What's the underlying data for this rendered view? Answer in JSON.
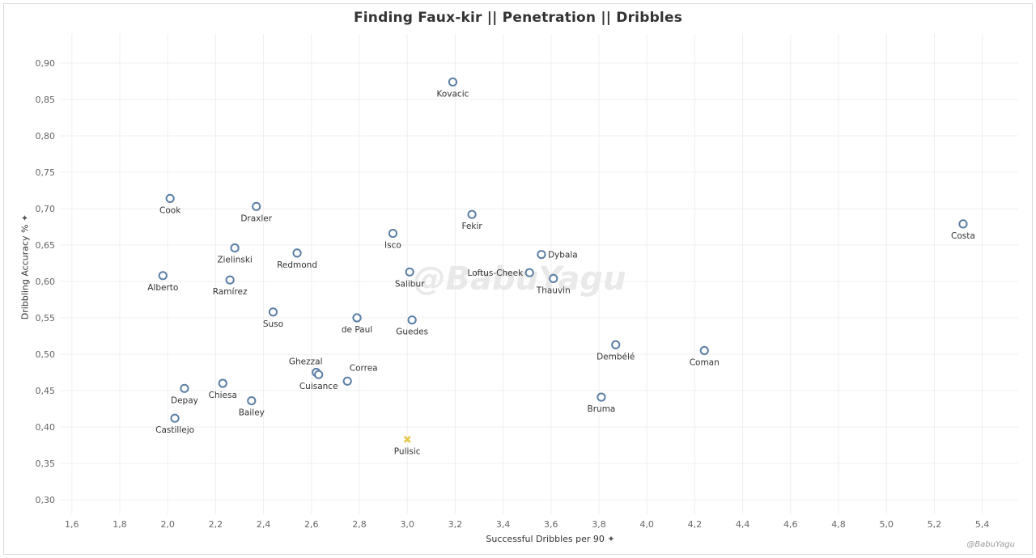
{
  "title": "Finding Faux-kir  ||  Penetration  ||  Dribbles",
  "credit": "@BabuYagu",
  "watermark": "@BabuYagu",
  "chart_data": {
    "type": "scatter",
    "title": "Finding Faux-kir  ||  Penetration  ||  Dribbles",
    "xlabel": "Successful Dribbles per 90",
    "ylabel": "Dribbling Accuracy %",
    "xlim": [
      1.55,
      5.55
    ],
    "ylim": [
      0.28,
      0.94
    ],
    "xticks": [
      "1,6",
      "1,8",
      "2,0",
      "2,2",
      "2,4",
      "2,6",
      "2,8",
      "3,0",
      "3,2",
      "3,4",
      "3,6",
      "3,8",
      "4,0",
      "4,2",
      "4,4",
      "4,6",
      "4,8",
      "5,0",
      "5,2",
      "5,4"
    ],
    "yticks": [
      "0,30",
      "0,35",
      "0,40",
      "0,45",
      "0,50",
      "0,55",
      "0,60",
      "0,65",
      "0,70",
      "0,75",
      "0,80",
      "0,85",
      "0,90"
    ],
    "grid": true,
    "marker_color": "#5b7fa6",
    "highlight_color": "#e8c547",
    "points": [
      {
        "name": "Kovacic",
        "x": 3.19,
        "y": 0.874,
        "lpos": "below"
      },
      {
        "name": "Cook",
        "x": 2.01,
        "y": 0.714,
        "lpos": "below"
      },
      {
        "name": "Draxler",
        "x": 2.37,
        "y": 0.703,
        "lpos": "below"
      },
      {
        "name": "Fekir",
        "x": 3.27,
        "y": 0.692,
        "lpos": "below"
      },
      {
        "name": "Costa",
        "x": 5.32,
        "y": 0.679,
        "lpos": "below"
      },
      {
        "name": "Isco",
        "x": 2.94,
        "y": 0.666,
        "lpos": "below"
      },
      {
        "name": "Zielinski",
        "x": 2.28,
        "y": 0.646,
        "lpos": "below"
      },
      {
        "name": "Redmond",
        "x": 2.54,
        "y": 0.639,
        "lpos": "below"
      },
      {
        "name": "Dybala",
        "x": 3.56,
        "y": 0.637,
        "lpos": "right"
      },
      {
        "name": "Salibur",
        "x": 3.01,
        "y": 0.613,
        "lpos": "below"
      },
      {
        "name": "Loftus-Cheek",
        "x": 3.51,
        "y": 0.612,
        "lpos": "left"
      },
      {
        "name": "Alberto",
        "x": 1.98,
        "y": 0.608,
        "lpos": "below"
      },
      {
        "name": "Thauvin",
        "x": 3.61,
        "y": 0.604,
        "lpos": "below"
      },
      {
        "name": "Ramírez",
        "x": 2.26,
        "y": 0.602,
        "lpos": "below"
      },
      {
        "name": "Suso",
        "x": 2.44,
        "y": 0.558,
        "lpos": "below"
      },
      {
        "name": "de Paul",
        "x": 2.79,
        "y": 0.55,
        "lpos": "below"
      },
      {
        "name": "Guedes",
        "x": 3.02,
        "y": 0.547,
        "lpos": "below"
      },
      {
        "name": "Dembélé",
        "x": 3.87,
        "y": 0.513,
        "lpos": "below"
      },
      {
        "name": "Coman",
        "x": 4.24,
        "y": 0.505,
        "lpos": "below"
      },
      {
        "name": "Ghezzal",
        "x": 2.62,
        "y": 0.475,
        "lpos": "above"
      },
      {
        "name": "Cuisance",
        "x": 2.63,
        "y": 0.472,
        "lpos": "below"
      },
      {
        "name": "Correa",
        "x": 2.75,
        "y": 0.463,
        "lpos": "aboveright"
      },
      {
        "name": "Chiesa",
        "x": 2.23,
        "y": 0.46,
        "lpos": "below"
      },
      {
        "name": "Depay",
        "x": 2.07,
        "y": 0.453,
        "lpos": "below"
      },
      {
        "name": "Bruma",
        "x": 3.81,
        "y": 0.441,
        "lpos": "below"
      },
      {
        "name": "Bailey",
        "x": 2.35,
        "y": 0.436,
        "lpos": "below"
      },
      {
        "name": "Castillejo",
        "x": 2.03,
        "y": 0.412,
        "lpos": "below"
      },
      {
        "name": "Pulisic",
        "x": 3.0,
        "y": 0.383,
        "lpos": "below",
        "highlight": true
      }
    ]
  }
}
